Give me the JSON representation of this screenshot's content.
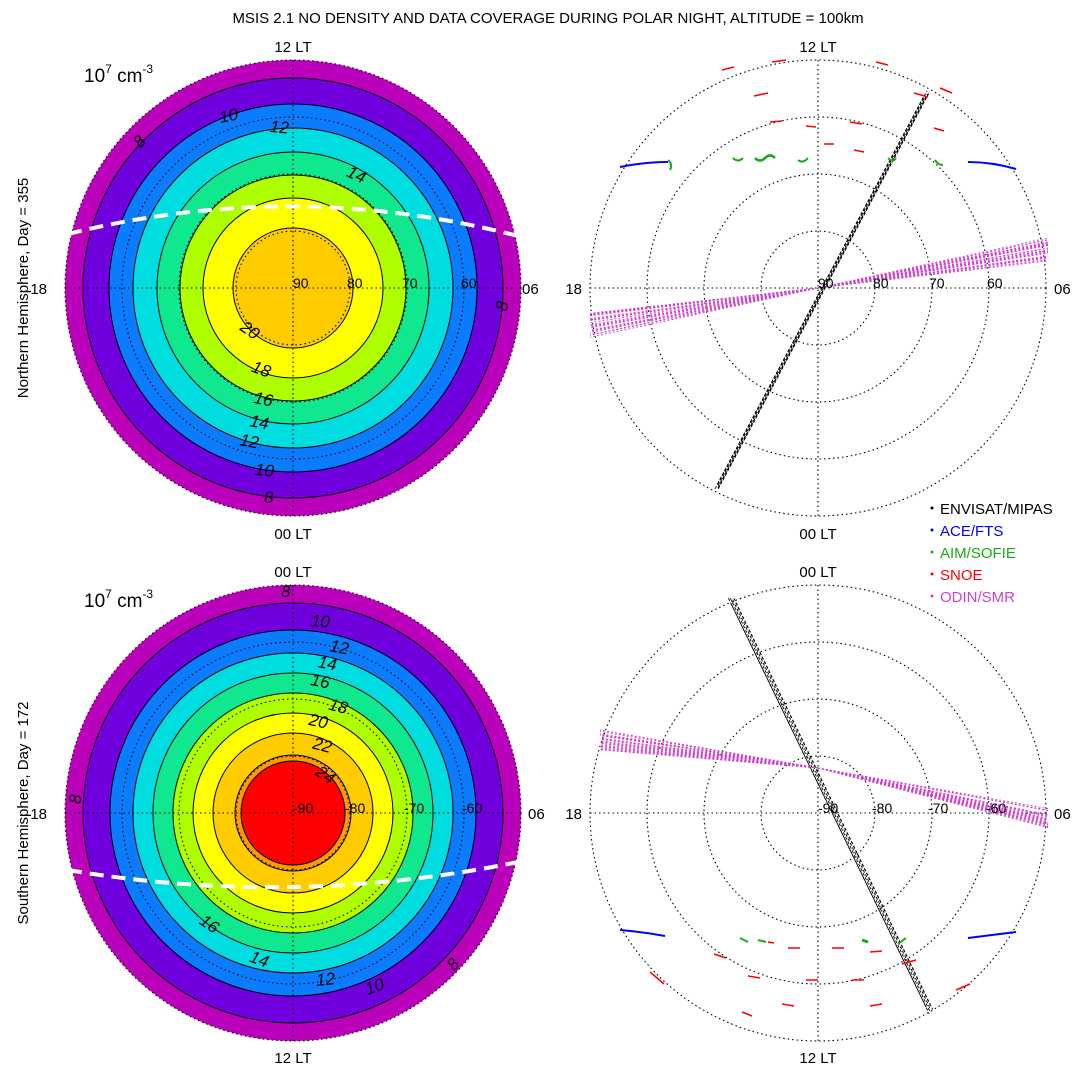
{
  "figure": {
    "title": "MSIS 2.1 NO DENSITY AND DATA COVERAGE DURING POLAR NIGHT, ALTITUDE = 100km"
  },
  "lt_labels": {
    "top_north": "12 LT",
    "bottom_north": "00 LT",
    "top_south": "00 LT",
    "bottom_south": "12 LT",
    "left": "18",
    "right": "06"
  },
  "unit": {
    "base": "10",
    "exp": "7",
    "rest": " cm",
    "exp2": "-3"
  },
  "panels": {
    "north": {
      "ylabel": "Northern Hemisphere, Day = 355",
      "lat_labels": [
        "90",
        "80",
        "70",
        "60"
      ]
    },
    "south": {
      "ylabel": "Southern Hemisphere, Day = 172",
      "lat_labels": [
        "-90",
        "-80",
        "-70",
        "-60"
      ]
    }
  },
  "legend": [
    {
      "label": "ENVISAT/MIPAS",
      "color": "#000000"
    },
    {
      "label": "ACE/FTS",
      "color": "#0000ff"
    },
    {
      "label": "AIM/SOFIE",
      "color": "#1aa81a"
    },
    {
      "label": "SNOE",
      "color": "#ff0000"
    },
    {
      "label": "ODIN/SMR",
      "color": "#cc44cc"
    }
  ],
  "chart_data": [
    {
      "type": "heatmap",
      "projection": "polar-stereographic",
      "hemisphere": "north",
      "day": 355,
      "levels": [
        8,
        10,
        12,
        14,
        16,
        18,
        20
      ],
      "band_colors": [
        "#bb00bb",
        "#7000dd",
        "#0c7cff",
        "#00dde0",
        "#10e890",
        "#b0ff00",
        "#ffff00",
        "#ffcc00"
      ],
      "contour_labels": [
        "8",
        "10",
        "12",
        "14",
        "20",
        "18",
        "16",
        "14",
        "12",
        "10",
        "8",
        "8"
      ],
      "terminator": "white dashed line"
    },
    {
      "type": "scatter",
      "projection": "polar-stereographic",
      "hemisphere": "north",
      "series": [
        {
          "name": "ENVISAT/MIPAS",
          "orbit": "fixed local time track",
          "lt": [
            "22.5",
            "10.5"
          ]
        },
        {
          "name": "ACE/FTS",
          "segments": "two arcs near 65N"
        },
        {
          "name": "AIM/SOFIE",
          "points": "near 75N"
        },
        {
          "name": "SNOE",
          "points": "near 60-67N"
        },
        {
          "name": "ODIN/SMR",
          "orbit": "fixed local time track",
          "lt": [
            "06.5",
            "18.5"
          ]
        }
      ]
    },
    {
      "type": "heatmap",
      "projection": "polar-stereographic",
      "hemisphere": "south",
      "day": 172,
      "levels": [
        8,
        10,
        12,
        14,
        16,
        18,
        20,
        22,
        24
      ],
      "band_colors": [
        "#bb00bb",
        "#7000dd",
        "#0c7cff",
        "#00dde0",
        "#10e890",
        "#b0ff00",
        "#ffff00",
        "#ffcc00",
        "#ff9900",
        "#ff0000"
      ],
      "contour_labels": [
        "8",
        "10",
        "12",
        "14",
        "16",
        "18",
        "20",
        "22",
        "24",
        "8",
        "16",
        "14",
        "12",
        "10",
        "8"
      ],
      "terminator": "white dashed line"
    },
    {
      "type": "scatter",
      "projection": "polar-stereographic",
      "hemisphere": "south",
      "series": [
        {
          "name": "ENVISAT/MIPAS",
          "orbit": "fixed local time track"
        },
        {
          "name": "ACE/FTS",
          "segments": "two arcs near 65S"
        },
        {
          "name": "AIM/SOFIE",
          "points": "near 75S"
        },
        {
          "name": "SNOE",
          "points": "near 60-67S"
        },
        {
          "name": "ODIN/SMR",
          "orbit": "fixed local time track"
        }
      ]
    }
  ]
}
